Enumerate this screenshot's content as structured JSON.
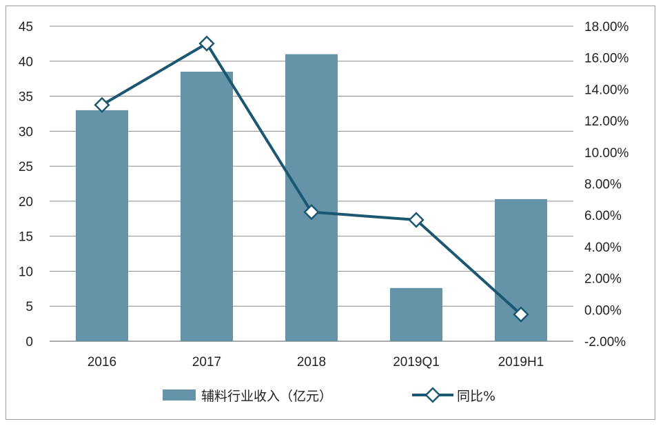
{
  "chart_data": {
    "type": "bar+line",
    "categories": [
      "2016",
      "2017",
      "2018",
      "2019Q1",
      "2019H1"
    ],
    "series": [
      {
        "name": "辅料行业收入（亿元）",
        "type": "bar",
        "axis": "left",
        "values": [
          33,
          38.5,
          41,
          7.6,
          20.3
        ]
      },
      {
        "name": "同比%",
        "type": "line",
        "axis": "right",
        "values": [
          13.0,
          16.9,
          6.2,
          5.7,
          -0.3
        ]
      }
    ],
    "y_left": {
      "range": [
        0,
        45
      ],
      "ticks": [
        "0",
        "5",
        "10",
        "15",
        "20",
        "25",
        "30",
        "35",
        "40",
        "45"
      ]
    },
    "y_right": {
      "range": [
        -2,
        18
      ],
      "ticks": [
        "-2.00%",
        "0.00%",
        "2.00%",
        "4.00%",
        "6.00%",
        "8.00%",
        "10.00%",
        "12.00%",
        "14.00%",
        "16.00%",
        "18.00%"
      ]
    },
    "grid": true,
    "legend_position": "bottom",
    "colors": {
      "bar": "#6594a8",
      "line": "#1b5770",
      "marker_fill": "#ffffff",
      "grid": "#8c8c8c"
    }
  }
}
